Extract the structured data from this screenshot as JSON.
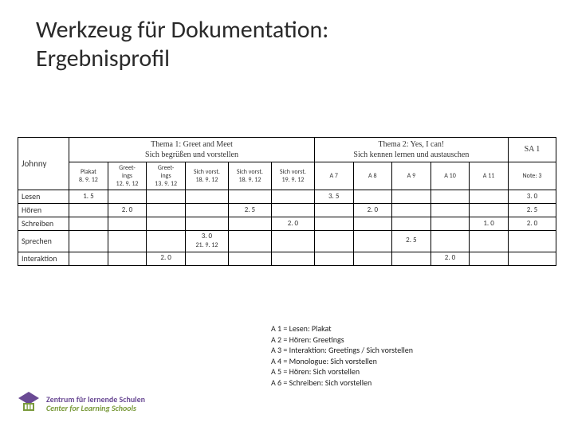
{
  "title_line1": "Werkzeug für Dokumentation:",
  "title_line2": "Ergebnisprofil",
  "table": {
    "student": "Johnny",
    "thema1_title": "Thema 1: Greet and Meet",
    "thema1_sub": "Sich begrüßen und vorstellen",
    "thema2_title": "Thema 2: Yes, I can!",
    "thema2_sub": "Sich kennen lernen und austauschen",
    "sa_label": "SA 1",
    "col_headers": [
      {
        "l1": "Plakat",
        "l2": "8. 9. 12"
      },
      {
        "l1": "Greet-",
        "l2": "ings",
        "l3": "12. 9. 12"
      },
      {
        "l1": "Greet-",
        "l2": "ings",
        "l3": "13. 9. 12"
      },
      {
        "l1": "Sich vorst.",
        "l2": "18. 9. 12"
      },
      {
        "l1": "Sich vorst.",
        "l2": "18. 9. 12"
      },
      {
        "l1": "Sich vorst.",
        "l2": "19. 9. 12"
      },
      {
        "l1": "A 7",
        "l2": ""
      },
      {
        "l1": "A 8",
        "l2": ""
      },
      {
        "l1": "A 9",
        "l2": ""
      },
      {
        "l1": "A 10",
        "l2": ""
      },
      {
        "l1": "A 11",
        "l2": ""
      }
    ],
    "note_label": "Note: 3",
    "rows": [
      {
        "label": "Lesen",
        "cells": [
          "1. 5",
          "",
          "",
          "",
          "",
          "",
          "3. 5",
          "",
          "",
          "",
          "",
          "3. 0"
        ]
      },
      {
        "label": "Hören",
        "cells": [
          "",
          "2. 0",
          "",
          "",
          "2. 5",
          "",
          "",
          "2. 0",
          "",
          "",
          "",
          "2. 5"
        ]
      },
      {
        "label": "Schreiben",
        "cells": [
          "",
          "",
          "",
          "",
          "",
          "2. 0",
          "",
          "",
          "",
          "",
          "1. 0",
          "2. 0"
        ]
      },
      {
        "label": "Sprechen",
        "cells": [
          "",
          "",
          "",
          "3. 0\n21. 9. 12",
          "",
          "",
          "",
          "",
          "2. 5",
          "",
          "",
          ""
        ]
      },
      {
        "label": "Interaktion",
        "cells": [
          "",
          "",
          "2. 0",
          "",
          "",
          "",
          "",
          "",
          "",
          "2. 0",
          "",
          ""
        ]
      }
    ]
  },
  "legend": [
    "A 1 = Lesen: Plakat",
    "A 2 = Hören: Greetings",
    "A 3 = Interaktion: Greetings / Sich vorstellen",
    "A 4 = Monologue: Sich vorstellen",
    "A 5 = Hören: Sich vorstellen",
    "A 6 = Schreiben: Sich vorstellen"
  ],
  "logo": {
    "de": "Zentrum für lernende Schulen",
    "en": "Center for Learning Schools"
  },
  "colors": {
    "border": "#000000",
    "text": "#333333",
    "logo_purple": "#6a4a94",
    "logo_green": "#7a9a3c"
  },
  "col_widths_pct": [
    9.5,
    7.2,
    7.2,
    7.2,
    8.0,
    8.0,
    8.0,
    7.2,
    7.2,
    7.2,
    7.2,
    7.2,
    8.9
  ]
}
